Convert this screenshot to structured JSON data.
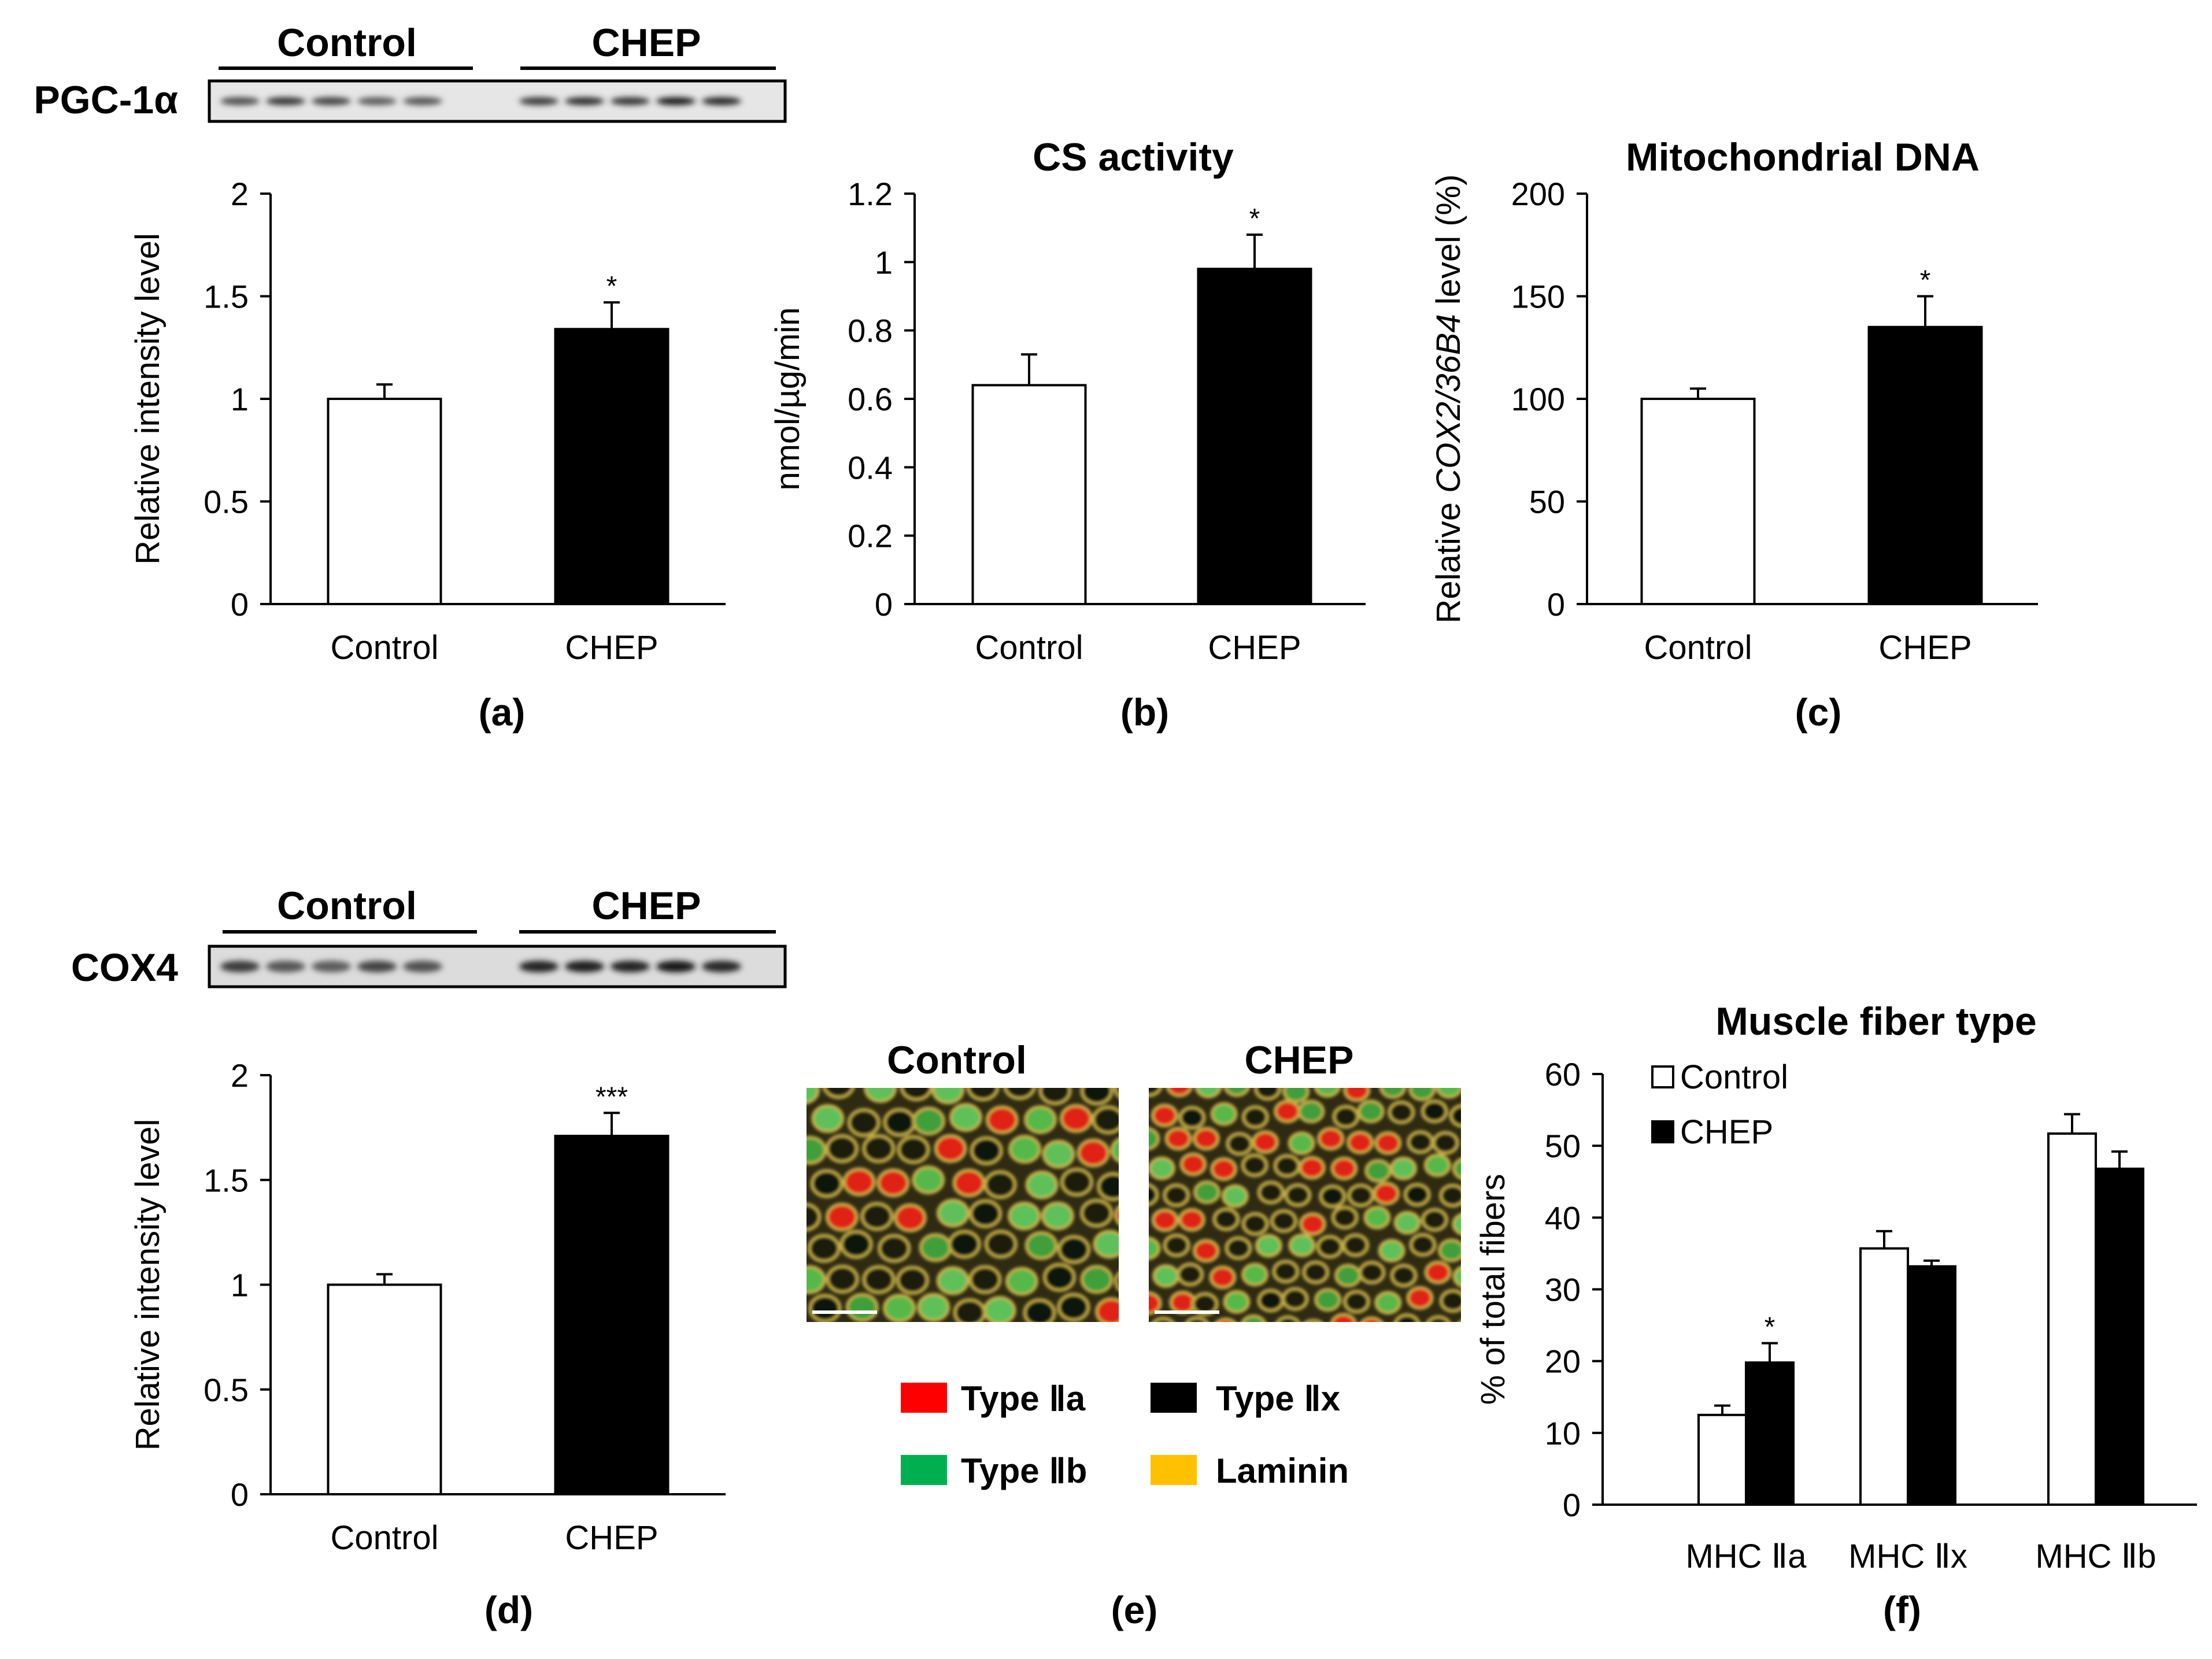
{
  "blots": [
    {
      "label": "PGC-1α",
      "groups": [
        "Control",
        "CHEP"
      ],
      "band_intensity": [
        0.55,
        0.75,
        0.65,
        0.45,
        0.5,
        0.7,
        0.8,
        0.75,
        0.95,
        0.85
      ]
    },
    {
      "label": "COX4",
      "groups": [
        "Control",
        "CHEP"
      ],
      "band_intensity": [
        0.7,
        0.5,
        0.45,
        0.65,
        0.55,
        0.9,
        0.95,
        0.9,
        1.0,
        0.85
      ]
    }
  ],
  "micrographs": {
    "panel": "(e)",
    "titles": [
      "Control",
      "CHEP"
    ],
    "legend": [
      {
        "label": "Type Ⅱa",
        "color": "#ff0000"
      },
      {
        "label": "Type Ⅱx",
        "color": "#000000"
      },
      {
        "label": "Type Ⅱb",
        "color": "#00b050"
      },
      {
        "label": "Laminin",
        "color": "#ffc000"
      }
    ]
  },
  "chart_data": [
    {
      "panel": "(a)",
      "type": "bar",
      "title": "",
      "categories": [
        "Control",
        "CHEP"
      ],
      "values": [
        1.0,
        1.34
      ],
      "errors": [
        0.07,
        0.13
      ],
      "colors": [
        "#ffffff",
        "#000000"
      ],
      "significance": [
        "",
        "*"
      ],
      "ylabel": "Relative intensity level",
      "ylim": [
        0,
        2
      ],
      "yticks": [
        0,
        0.5,
        1,
        1.5,
        2
      ],
      "ytick_labels": [
        "0",
        "0.5",
        "1",
        "1.5",
        "2"
      ]
    },
    {
      "panel": "(b)",
      "type": "bar",
      "title": "CS activity",
      "categories": [
        "Control",
        "CHEP"
      ],
      "values": [
        0.64,
        0.98
      ],
      "errors": [
        0.09,
        0.1
      ],
      "colors": [
        "#ffffff",
        "#000000"
      ],
      "significance": [
        "",
        "*"
      ],
      "ylabel": "nmol/µg/min",
      "ylim": [
        0,
        1.2
      ],
      "yticks": [
        0,
        0.2,
        0.4,
        0.6,
        0.8,
        1,
        1.2
      ],
      "ytick_labels": [
        "0",
        "0.2",
        "0.4",
        "0.6",
        "0.8",
        "1",
        "1.2"
      ]
    },
    {
      "panel": "(c)",
      "type": "bar",
      "title": "Mitochondrial DNA",
      "categories": [
        "Control",
        "CHEP"
      ],
      "values": [
        100,
        135
      ],
      "errors": [
        5,
        15
      ],
      "colors": [
        "#ffffff",
        "#000000"
      ],
      "significance": [
        "",
        "*"
      ],
      "ylabel_parts": [
        "Relative ",
        "COX2/36B4",
        " level (%)"
      ],
      "ylim": [
        0,
        200
      ],
      "yticks": [
        0,
        50,
        100,
        150,
        200
      ],
      "ytick_labels": [
        "0",
        "50",
        "100",
        "150",
        "200"
      ]
    },
    {
      "panel": "(d)",
      "type": "bar",
      "title": "",
      "categories": [
        "Control",
        "CHEP"
      ],
      "values": [
        1.0,
        1.71
      ],
      "errors": [
        0.05,
        0.11
      ],
      "colors": [
        "#ffffff",
        "#000000"
      ],
      "significance": [
        "",
        "***"
      ],
      "ylabel": "Relative intensity level",
      "ylim": [
        0,
        2
      ],
      "yticks": [
        0,
        0.5,
        1,
        1.5,
        2
      ],
      "ytick_labels": [
        "0",
        "0.5",
        "1",
        "1.5",
        "2"
      ]
    },
    {
      "panel": "(f)",
      "type": "bar",
      "title": "Muscle fiber type",
      "categories": [
        "MHC Ⅱa",
        "MHC Ⅱx",
        "MHC Ⅱb"
      ],
      "series": [
        {
          "name": "Control",
          "color": "#ffffff",
          "values": [
            12.5,
            35.7,
            51.7
          ],
          "errors": [
            1.3,
            2.4,
            2.7
          ],
          "significance": [
            "",
            "",
            ""
          ]
        },
        {
          "name": "CHEP",
          "color": "#000000",
          "values": [
            19.8,
            33.2,
            46.8
          ],
          "errors": [
            2.7,
            0.8,
            2.4
          ],
          "significance": [
            "*",
            "",
            ""
          ]
        }
      ],
      "ylabel": "% of total fibers",
      "ylim": [
        0,
        60
      ],
      "yticks": [
        0,
        10,
        20,
        30,
        40,
        50,
        60
      ],
      "ytick_labels": [
        "0",
        "10",
        "20",
        "30",
        "40",
        "50",
        "60"
      ],
      "legend_position": "top-left"
    }
  ]
}
